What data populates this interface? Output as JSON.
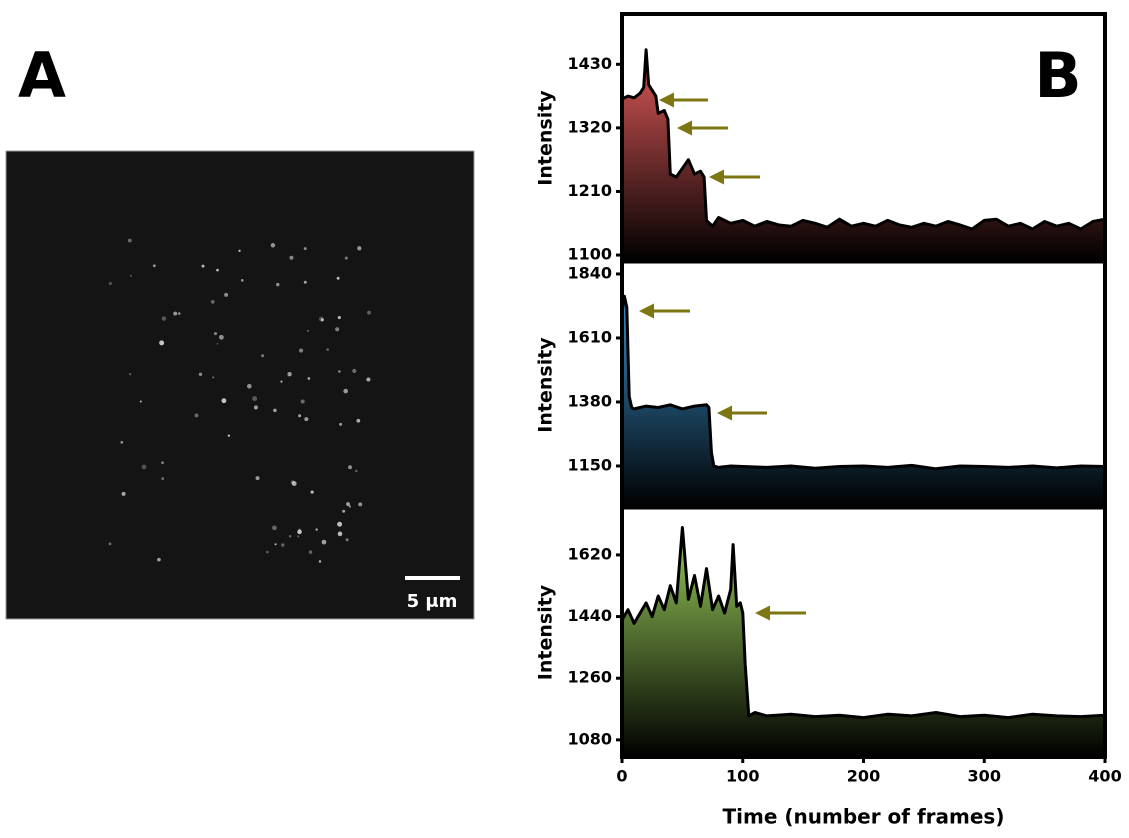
{
  "panel_a": {
    "label": "A",
    "scale_bar": "5 μm"
  },
  "panel_b": {
    "label": "B"
  },
  "chart_data": [
    {
      "type": "area",
      "ylabel": "Intensity",
      "color": "#e05a5a",
      "x": [
        0,
        5,
        10,
        15,
        18,
        20,
        22,
        25,
        28,
        30,
        35,
        38,
        40,
        45,
        50,
        55,
        60,
        65,
        68,
        70,
        75,
        80,
        90,
        100,
        110,
        120,
        130,
        140,
        150,
        160,
        170,
        180,
        190,
        200,
        210,
        220,
        230,
        240,
        250,
        260,
        270,
        280,
        290,
        300,
        310,
        320,
        330,
        340,
        350,
        360,
        370,
        380,
        390,
        400
      ],
      "values": [
        1370,
        1375,
        1372,
        1380,
        1390,
        1455,
        1395,
        1385,
        1375,
        1345,
        1350,
        1335,
        1240,
        1235,
        1250,
        1265,
        1240,
        1245,
        1235,
        1160,
        1150,
        1165,
        1155,
        1160,
        1150,
        1158,
        1152,
        1150,
        1160,
        1155,
        1148,
        1162,
        1150,
        1155,
        1150,
        1160,
        1152,
        1148,
        1155,
        1150,
        1158,
        1152,
        1145,
        1160,
        1162,
        1150,
        1155,
        1145,
        1158,
        1150,
        1155,
        1145,
        1158,
        1162
      ],
      "xlim": [
        0,
        400
      ],
      "ylim": [
        1088,
        1517
      ],
      "yticks": [
        1100,
        1210,
        1320,
        1430
      ]
    },
    {
      "type": "area",
      "ylabel": "Intensity",
      "color": "#3a8ec8",
      "x": [
        0,
        2,
        4,
        6,
        8,
        10,
        20,
        30,
        40,
        50,
        60,
        70,
        72,
        74,
        76,
        80,
        90,
        100,
        120,
        140,
        160,
        180,
        200,
        220,
        240,
        260,
        280,
        300,
        320,
        340,
        360,
        380,
        400
      ],
      "values": [
        1700,
        1760,
        1720,
        1400,
        1360,
        1355,
        1365,
        1360,
        1370,
        1355,
        1365,
        1370,
        1360,
        1200,
        1150,
        1145,
        1150,
        1148,
        1145,
        1150,
        1142,
        1148,
        1150,
        1145,
        1152,
        1140,
        1150,
        1148,
        1145,
        1150,
        1143,
        1150,
        1148
      ],
      "xlim": [
        0,
        400
      ],
      "ylim": [
        999,
        1883
      ],
      "yticks": [
        1150,
        1380,
        1610,
        1840
      ]
    },
    {
      "type": "area",
      "ylabel": "Intensity",
      "xlabel": "Time (number of frames)",
      "color": "#9acd5a",
      "x": [
        0,
        5,
        10,
        15,
        20,
        25,
        30,
        35,
        40,
        45,
        50,
        55,
        60,
        65,
        70,
        75,
        80,
        85,
        90,
        92,
        95,
        98,
        100,
        102,
        105,
        110,
        120,
        140,
        160,
        180,
        200,
        220,
        240,
        260,
        280,
        300,
        320,
        340,
        360,
        380,
        400
      ],
      "values": [
        1430,
        1460,
        1420,
        1450,
        1480,
        1440,
        1500,
        1460,
        1530,
        1480,
        1700,
        1490,
        1560,
        1470,
        1580,
        1460,
        1500,
        1450,
        1520,
        1650,
        1470,
        1480,
        1450,
        1300,
        1150,
        1160,
        1150,
        1155,
        1148,
        1152,
        1145,
        1155,
        1150,
        1160,
        1148,
        1152,
        1145,
        1155,
        1150,
        1148,
        1152
      ],
      "xlim": [
        0,
        400
      ],
      "ylim": [
        1030,
        1757
      ],
      "yticks": [
        1080,
        1260,
        1440,
        1620
      ],
      "xticks": [
        0,
        100,
        200,
        300,
        400
      ]
    }
  ]
}
